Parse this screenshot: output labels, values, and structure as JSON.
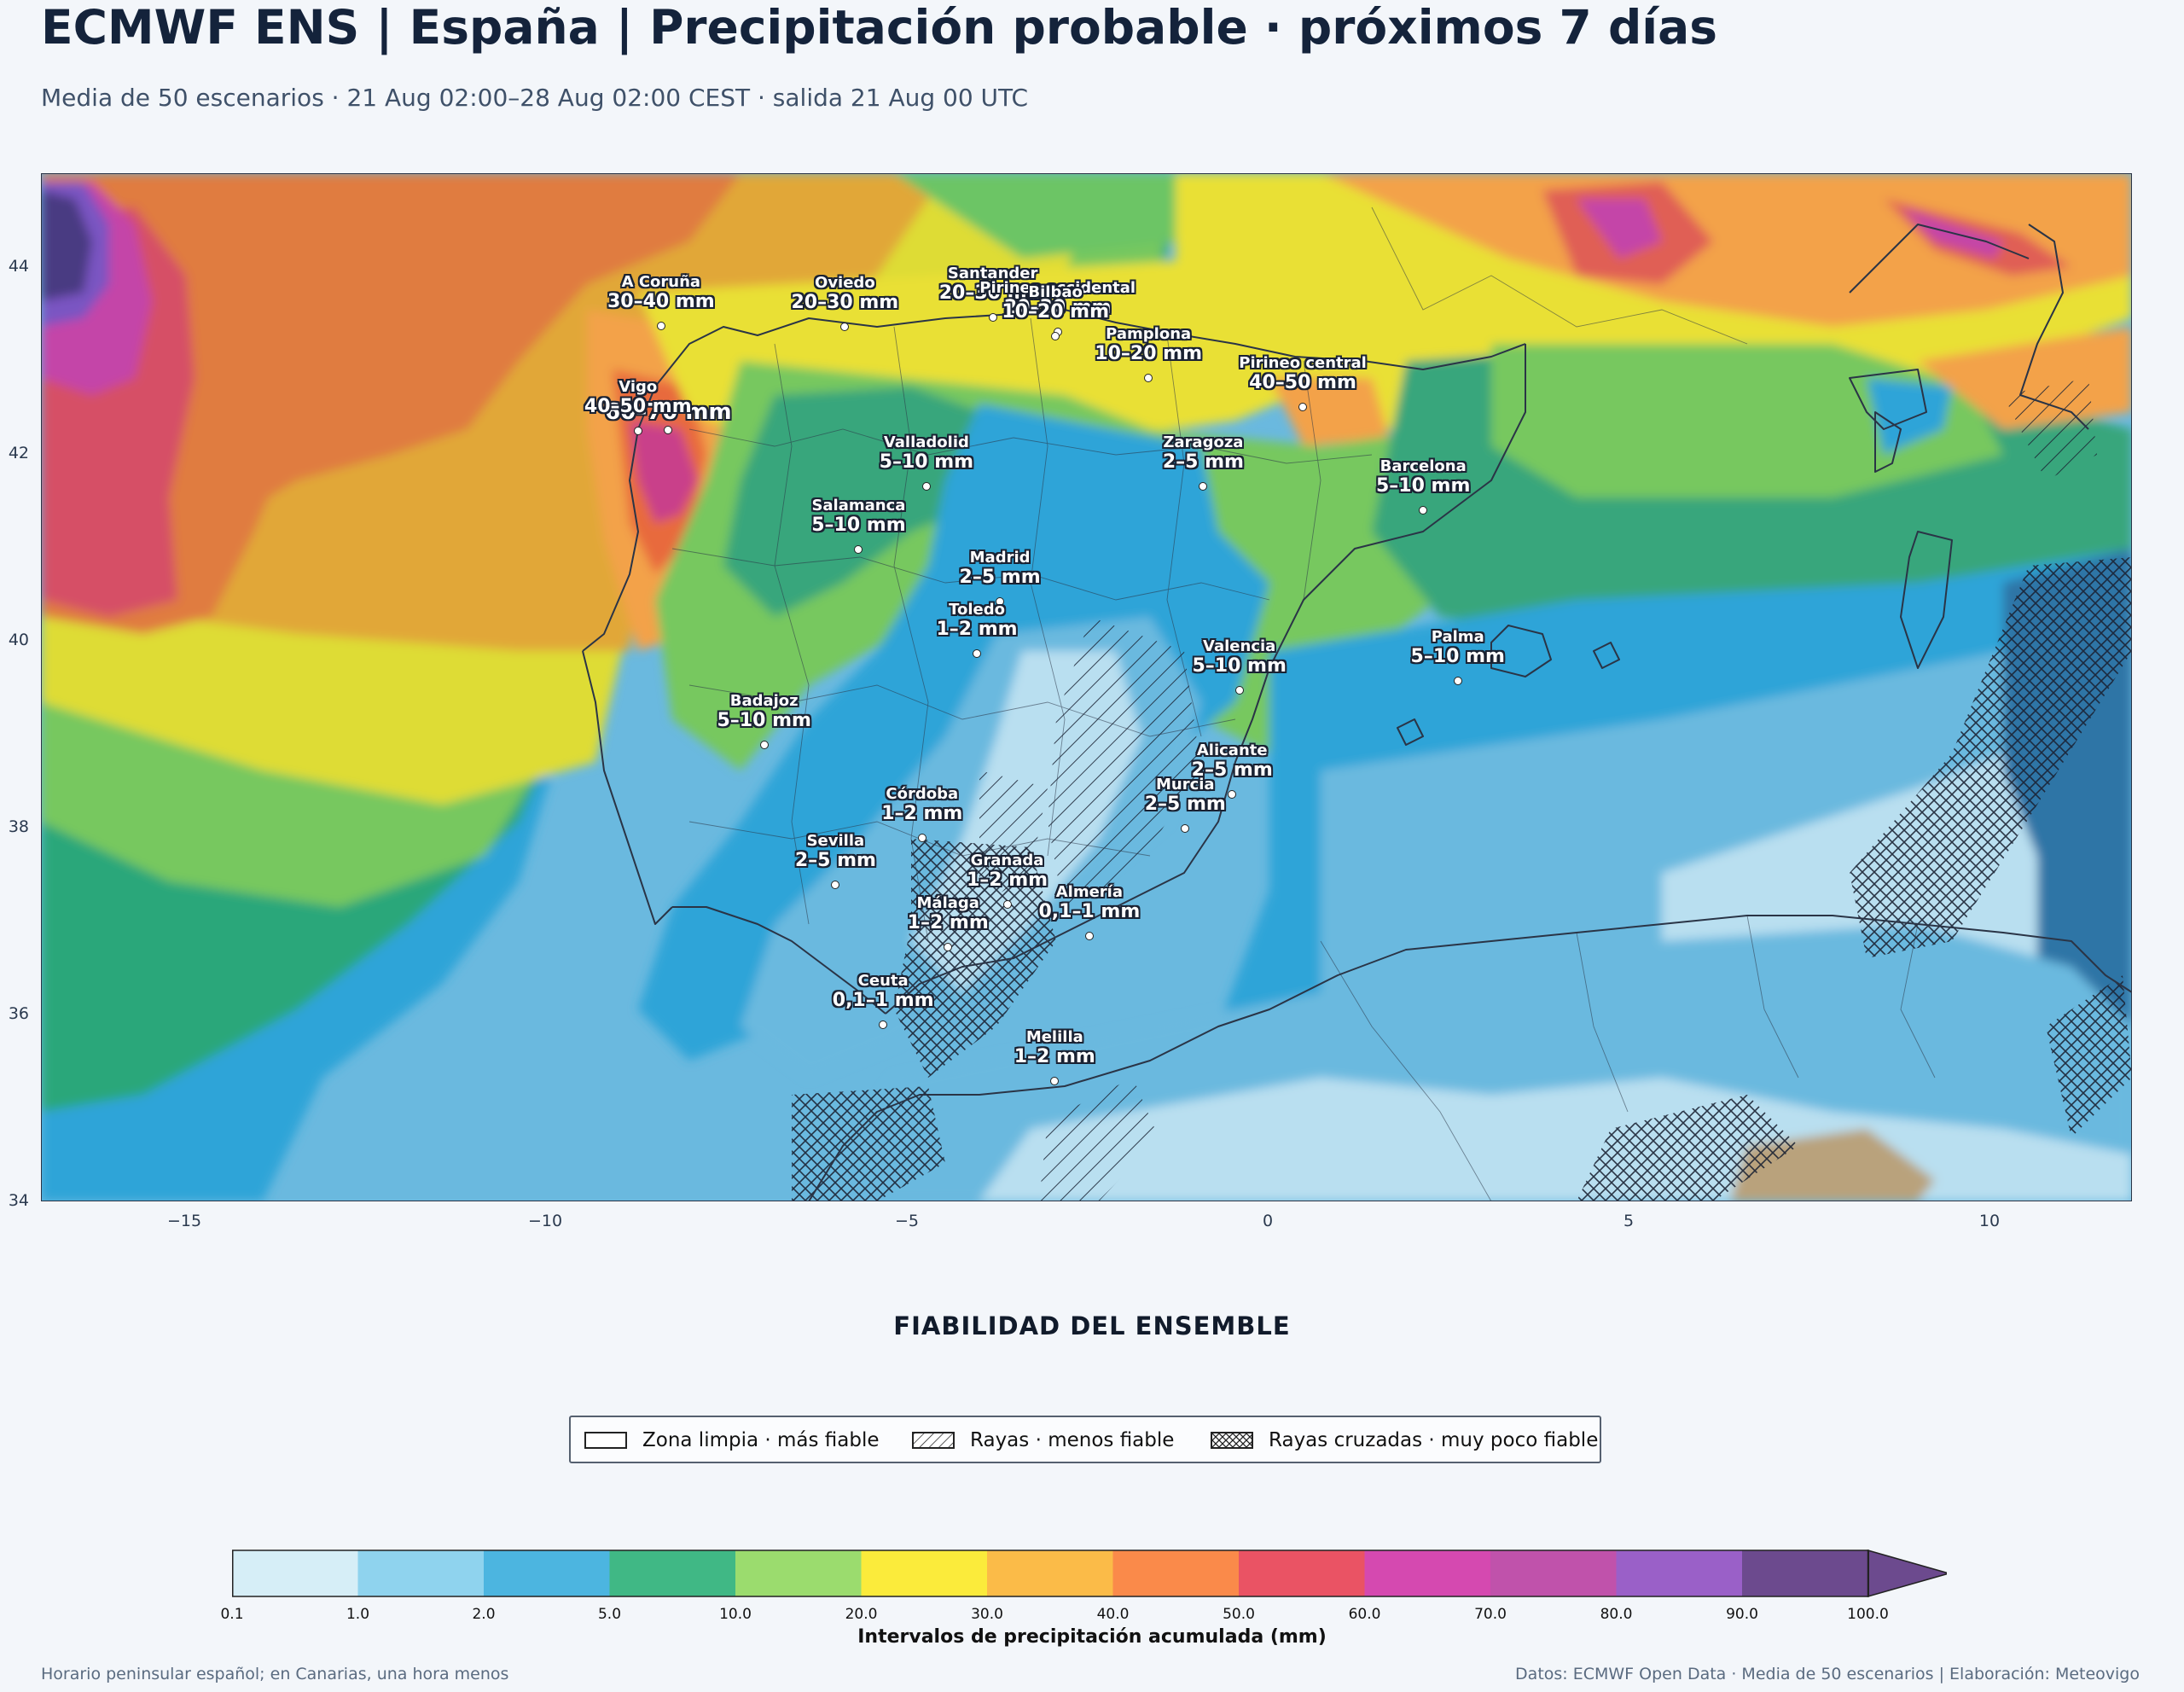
{
  "header": {
    "title": "ECMWF ENS | España | Precipitación probable · próximos 7 días",
    "subtitle": "Media de 50 escenarios · 21 Aug 02:00–28 Aug 02:00 CEST · salida 21 Aug 00 UTC"
  },
  "map": {
    "x_ticks": [
      "−15",
      "−10",
      "−5",
      "0",
      "5",
      "10"
    ],
    "y_ticks": [
      "44",
      "42",
      "40",
      "38",
      "36",
      "34"
    ],
    "cities": [
      {
        "name": "A Coruña",
        "value": "30–40 mm",
        "lon": -8.4,
        "lat": 43.37
      },
      {
        "name": "Oviedo",
        "value": "20–30 mm",
        "lon": -5.85,
        "lat": 43.36
      },
      {
        "name": "Santander",
        "value": "20–30 mm",
        "lon": -3.8,
        "lat": 43.46
      },
      {
        "name": "Pirineo occidental",
        "value": "20–30 mm",
        "lon": -2.9,
        "lat": 43.3
      },
      {
        "name": "Pamplona",
        "value": "10–20 mm",
        "lon": -1.64,
        "lat": 42.81
      },
      {
        "name": "Pirineo central",
        "value": "40–50 mm",
        "lon": 0.5,
        "lat": 42.5
      },
      {
        "name": "Bilbao",
        "value": "10–20 mm",
        "lon": -2.93,
        "lat": 43.26
      },
      {
        "name": "",
        "value": "60–70 mm",
        "lon": -8.3,
        "lat": 42.25
      },
      {
        "name": "Vigo",
        "value": "40–50 mm",
        "lon": -8.72,
        "lat": 42.24
      },
      {
        "name": "Valladolid",
        "value": "5–10 mm",
        "lon": -4.72,
        "lat": 41.65
      },
      {
        "name": "Zaragoza",
        "value": "2–5 mm",
        "lon": -0.88,
        "lat": 41.65
      },
      {
        "name": "Barcelona",
        "value": "5–10 mm",
        "lon": 2.17,
        "lat": 41.39
      },
      {
        "name": "Salamanca",
        "value": "5–10 mm",
        "lon": -5.66,
        "lat": 40.97
      },
      {
        "name": "Madrid",
        "value": "2–5 mm",
        "lon": -3.7,
        "lat": 40.42
      },
      {
        "name": "Valencia",
        "value": "5–10 mm",
        "lon": -0.38,
        "lat": 39.47
      },
      {
        "name": "Palma",
        "value": "5–10 mm",
        "lon": 2.65,
        "lat": 39.57
      },
      {
        "name": "Toledo",
        "value": "1–2 mm",
        "lon": -4.02,
        "lat": 39.86
      },
      {
        "name": "Badajoz",
        "value": "5–10 mm",
        "lon": -6.97,
        "lat": 38.88
      },
      {
        "name": "Córdoba",
        "value": "1–2 mm",
        "lon": -4.78,
        "lat": 37.89
      },
      {
        "name": "Alicante",
        "value": "2–5 mm",
        "lon": -0.48,
        "lat": 38.35
      },
      {
        "name": "Murcia",
        "value": "2–5 mm",
        "lon": -1.13,
        "lat": 37.99
      },
      {
        "name": "Granada",
        "value": "1–2 mm",
        "lon": -3.6,
        "lat": 37.18
      },
      {
        "name": "Sevilla",
        "value": "2–5 mm",
        "lon": -5.98,
        "lat": 37.39
      },
      {
        "name": "Almería",
        "value": "0,1–1 mm",
        "lon": -2.46,
        "lat": 36.84
      },
      {
        "name": "Málaga",
        "value": "1–2 mm",
        "lon": -4.42,
        "lat": 36.72
      },
      {
        "name": "Ceuta",
        "value": "0,1–1 mm",
        "lon": -5.32,
        "lat": 35.89
      },
      {
        "name": "Melilla",
        "value": "1–2 mm",
        "lon": -2.94,
        "lat": 35.29
      }
    ]
  },
  "reliability": {
    "title": "FIABILIDAD DEL ENSEMBLE",
    "items": [
      {
        "label": "Zona limpia · más fiable",
        "pattern": "none"
      },
      {
        "label": "Rayas · menos fiable",
        "pattern": "hatch"
      },
      {
        "label": "Rayas cruzadas · muy poco fiable",
        "pattern": "crosshatch"
      }
    ]
  },
  "colorbar": {
    "label": "Intervalos de precipitación acumulada (mm)",
    "ticks": [
      "0.1",
      "1.0",
      "2.0",
      "5.0",
      "10.0",
      "20.0",
      "30.0",
      "40.0",
      "50.0",
      "60.0",
      "70.0",
      "80.0",
      "90.0",
      "100.0"
    ],
    "colors": [
      "#d6eef7",
      "#8fd3ee",
      "#4cb5e0",
      "#40b885",
      "#9bdc6e",
      "#fbeb3b",
      "#fbbb48",
      "#fa8a4a",
      "#ea5364",
      "#d549b0",
      "#c052ab",
      "#9a60c8",
      "#6c4a8e"
    ],
    "extend_color": "#6c4a8e"
  },
  "footer": {
    "left": "Horario peninsular español; en Canarias, una hora menos",
    "right": "Datos: ECMWF Open Data · Media de 50 escenarios | Elaboración: Meteovigo"
  }
}
